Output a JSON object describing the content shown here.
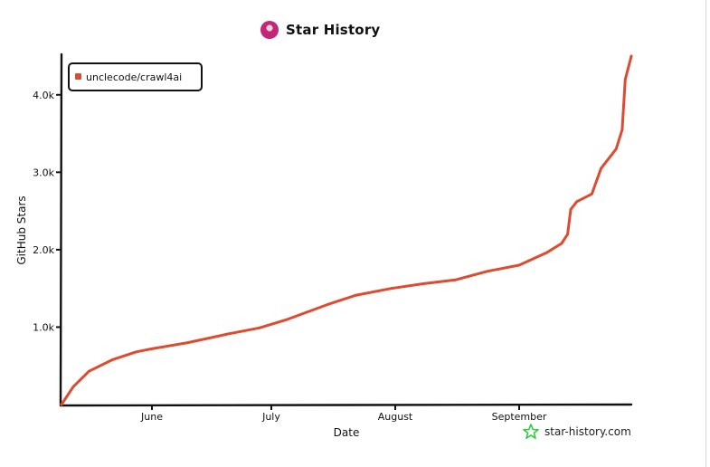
{
  "header": {
    "title": "Star History"
  },
  "brand": {
    "label": "star-history.com",
    "icon": "star-outline-icon",
    "icon_color": "#2ecc40"
  },
  "colors": {
    "series": "#dd4b30",
    "axis": "#111111"
  },
  "chart_data": {
    "type": "line",
    "xlabel": "Date",
    "ylabel": "GitHub Stars",
    "x_ticks": [
      "June",
      "July",
      "August",
      "September"
    ],
    "y_ticks": [
      "1.0k",
      "2.0k",
      "3.0k",
      "4.0k"
    ],
    "ylim": [
      0,
      4500
    ],
    "grid": false,
    "legend_position": "top-left",
    "series": [
      {
        "name": "unclecode/crawl4ai",
        "color": "#dd4b30",
        "points": [
          [
            "2024-05-09",
            0
          ],
          [
            "2024-05-12",
            230
          ],
          [
            "2024-05-16",
            430
          ],
          [
            "2024-05-22",
            580
          ],
          [
            "2024-05-28",
            680
          ],
          [
            "2024-06-01",
            720
          ],
          [
            "2024-06-10",
            800
          ],
          [
            "2024-06-20",
            910
          ],
          [
            "2024-06-28",
            990
          ],
          [
            "2024-07-05",
            1100
          ],
          [
            "2024-07-15",
            1290
          ],
          [
            "2024-07-22",
            1410
          ],
          [
            "2024-07-31",
            1500
          ],
          [
            "2024-08-08",
            1560
          ],
          [
            "2024-08-16",
            1610
          ],
          [
            "2024-08-24",
            1720
          ],
          [
            "2024-09-01",
            1800
          ],
          [
            "2024-09-10",
            1960
          ],
          [
            "2024-09-15",
            2080
          ],
          [
            "2024-09-17",
            2200
          ],
          [
            "2024-09-18",
            2520
          ],
          [
            "2024-09-20",
            2620
          ],
          [
            "2024-09-25",
            2720
          ],
          [
            "2024-09-28",
            3050
          ],
          [
            "2024-10-03",
            3300
          ],
          [
            "2024-10-05",
            3550
          ],
          [
            "2024-10-06",
            4200
          ],
          [
            "2024-10-08",
            4500
          ]
        ]
      }
    ]
  }
}
